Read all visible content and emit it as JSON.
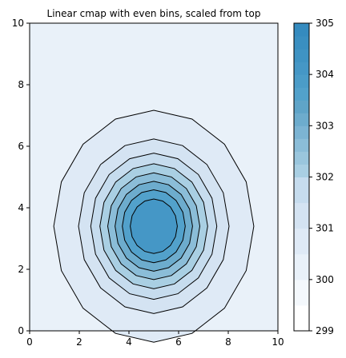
{
  "chart_data": {
    "type": "contour",
    "title": "Linear cmap with even bins, scaled from top",
    "xlabel": "",
    "ylabel": "",
    "xlim": [
      0,
      10
    ],
    "ylim": [
      0,
      10
    ],
    "x_ticks": [
      0,
      2,
      4,
      6,
      8,
      10
    ],
    "y_ticks": [
      0,
      2,
      4,
      6,
      8,
      10
    ],
    "colorbar": {
      "range": [
        299,
        305
      ],
      "ticks": [
        299,
        300,
        301,
        302,
        303,
        304,
        305
      ],
      "levels": [
        299.0,
        299.5,
        300.0,
        300.5,
        301.0,
        301.5,
        302.0,
        302.25,
        302.5,
        302.75,
        303.0,
        303.25,
        303.5,
        303.75,
        304.0,
        304.25,
        304.5,
        304.75,
        305.0
      ],
      "colors": [
        "#ffffff",
        "#f4f8fc",
        "#e9f1f9",
        "#dfeaf6",
        "#d4e3f2",
        "#c6dcee",
        "#a9cfe3",
        "#9ac6dd",
        "#8bbdd8",
        "#7cb4d3",
        "#6daccd",
        "#5fa4c8",
        "#52a1cb",
        "#4b9cc8",
        "#4597c6",
        "#3f93c3",
        "#3a8fc1",
        "#358bbf"
      ]
    },
    "field": {
      "background": 300.1,
      "peak": 304.5,
      "peak_x": 5,
      "peak_y": 3.4
    },
    "contour_levels": [
      300.25,
      300.75,
      301.25,
      301.75,
      302.25,
      302.75,
      303.25,
      303.75
    ]
  }
}
